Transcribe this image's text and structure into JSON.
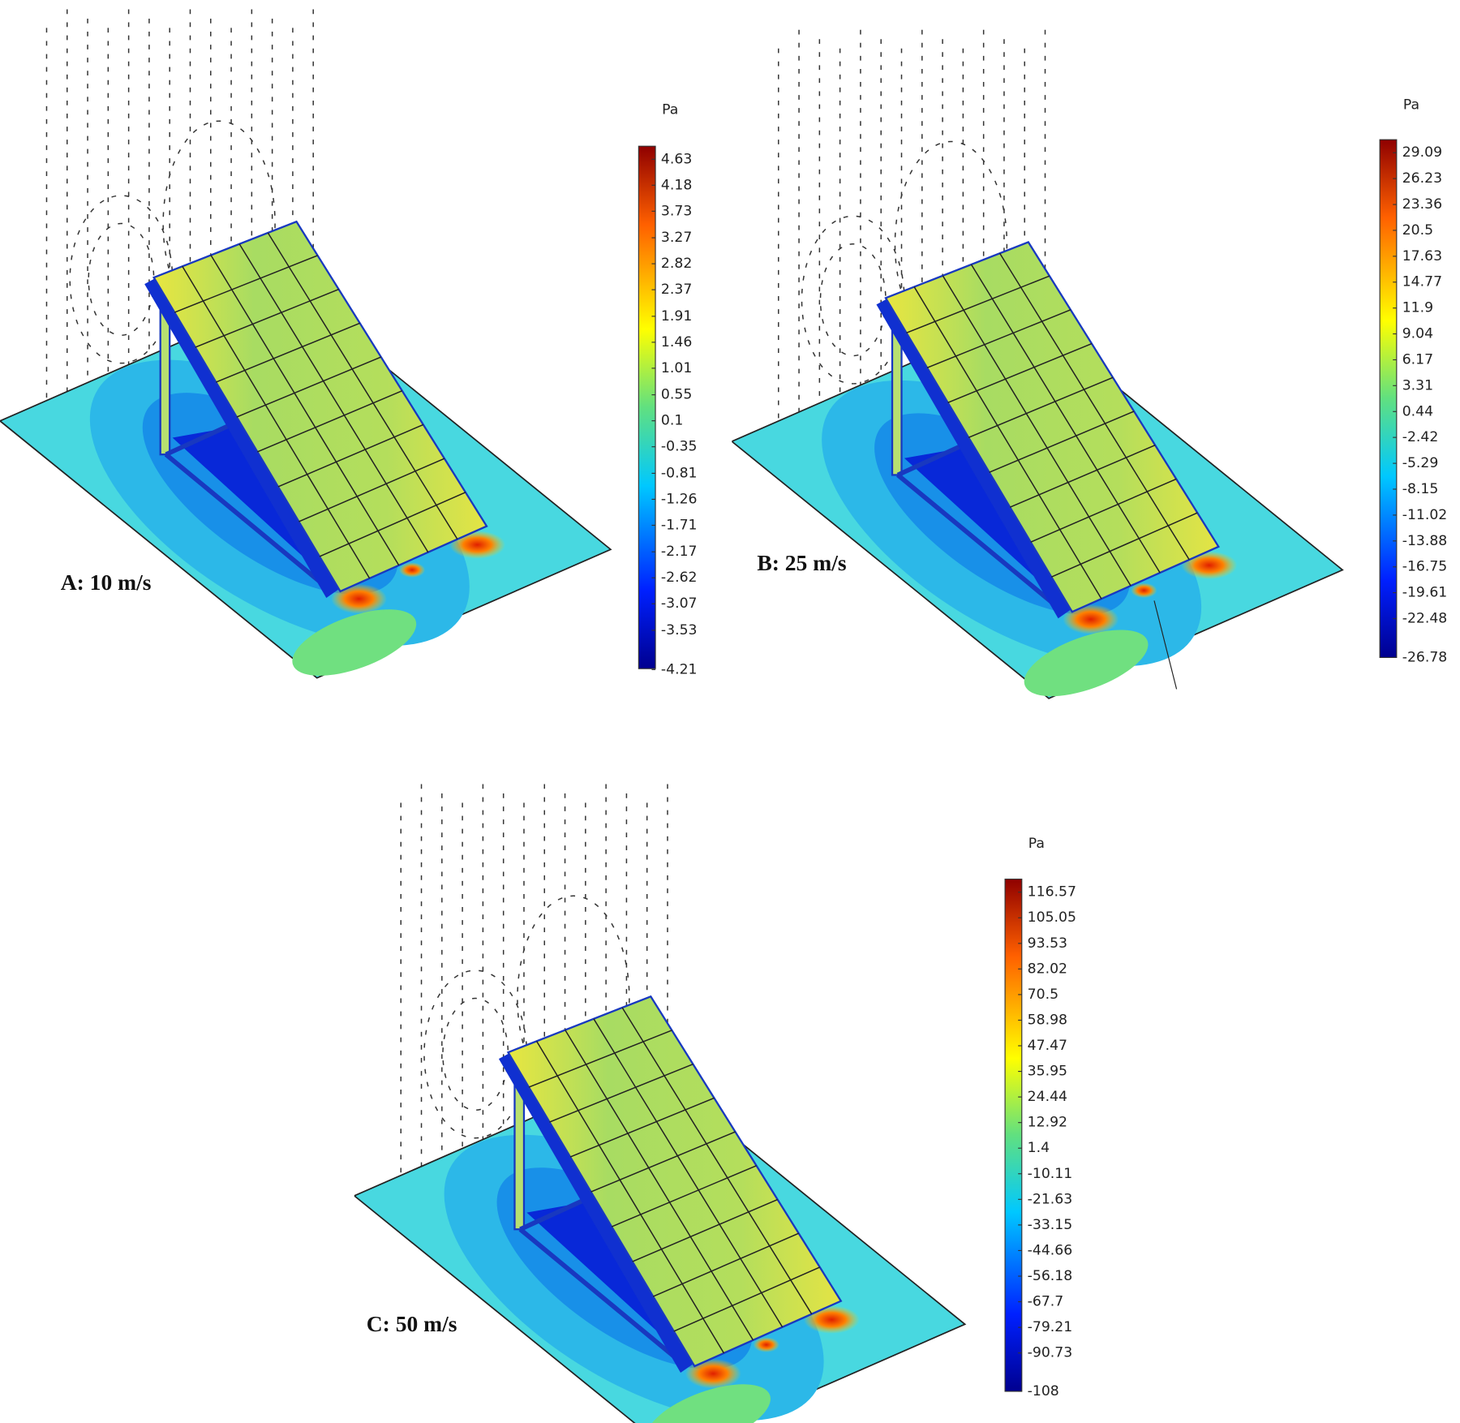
{
  "panels": [
    {
      "label": "A: 10 m/s",
      "unit": "Pa",
      "ticks": [
        4.63,
        4.18,
        3.73,
        3.27,
        2.82,
        2.37,
        1.91,
        1.46,
        1.01,
        0.55,
        0.1,
        -0.35,
        -0.81,
        -1.26,
        -1.71,
        -2.17,
        -2.62,
        -3.07,
        -3.53,
        -4.21
      ]
    },
    {
      "label": "B: 25 m/s",
      "unit": "Pa",
      "ticks": [
        29.09,
        26.23,
        23.36,
        20.5,
        17.63,
        14.77,
        11.9,
        9.04,
        6.17,
        3.31,
        0.44,
        -2.42,
        -5.29,
        -8.15,
        -11.02,
        -13.88,
        -16.75,
        -19.61,
        -22.48,
        -26.78
      ]
    },
    {
      "label": "C: 50 m/s",
      "unit": "Pa",
      "ticks": [
        116.57,
        105.05,
        93.53,
        82.02,
        70.5,
        58.98,
        47.47,
        35.95,
        24.44,
        12.92,
        1.4,
        -10.11,
        -21.63,
        -33.15,
        -44.66,
        -56.18,
        -67.7,
        -79.21,
        -90.73,
        -108
      ]
    }
  ]
}
